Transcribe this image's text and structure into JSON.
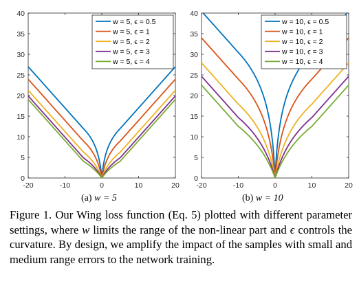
{
  "chart_data": [
    {
      "type": "line",
      "xlim": [
        -20,
        20
      ],
      "ylim": [
        0,
        40
      ],
      "x_ticks": [
        "-20",
        "-10",
        "0",
        "10",
        "20"
      ],
      "y_ticks": [
        "0",
        "5",
        "10",
        "15",
        "20",
        "25",
        "30",
        "35",
        "40"
      ],
      "grid": false,
      "legend_position": "top-right",
      "function": "wing loss: w*ln(1+|x|/epsilon) if |x|<w else |x| - w + w*ln(1+w/epsilon)",
      "w": 5,
      "x": [
        -20,
        -15,
        -10,
        -5,
        -2,
        -1,
        0,
        1,
        2,
        5,
        10,
        15,
        20
      ],
      "series": [
        {
          "name": "w = 5, ϵ = 0.5",
          "color": "#0072BD",
          "epsilon": 0.5,
          "values": [
            26.99,
            21.99,
            16.99,
            11.99,
            7.99,
            5.49,
            0,
            5.49,
            7.99,
            11.99,
            16.99,
            21.99,
            26.99
          ]
        },
        {
          "name": "w = 5, ϵ = 1",
          "color": "#D95319",
          "epsilon": 1,
          "values": [
            23.96,
            18.96,
            13.96,
            8.96,
            5.49,
            3.47,
            0,
            3.47,
            5.49,
            8.96,
            13.96,
            18.96,
            23.96
          ]
        },
        {
          "name": "w = 5, ϵ = 2",
          "color": "#EDB120",
          "epsilon": 2,
          "values": [
            21.26,
            16.26,
            11.26,
            6.26,
            3.47,
            2.03,
            0,
            2.03,
            3.47,
            6.26,
            11.26,
            16.26,
            21.26
          ]
        },
        {
          "name": "w = 5, ϵ = 3",
          "color": "#7E2F8E",
          "epsilon": 3,
          "values": [
            19.9,
            14.9,
            9.9,
            4.9,
            2.55,
            1.44,
            0,
            1.44,
            2.55,
            4.9,
            9.9,
            14.9,
            19.9
          ]
        },
        {
          "name": "w = 5, ϵ = 4",
          "color": "#77AC30",
          "epsilon": 4,
          "values": [
            19.06,
            14.06,
            9.06,
            4.06,
            2.03,
            1.12,
            0,
            1.12,
            2.03,
            4.06,
            9.06,
            14.06,
            19.06
          ]
        }
      ]
    },
    {
      "type": "line",
      "xlim": [
        -20,
        20
      ],
      "ylim": [
        0,
        40
      ],
      "x_ticks": [
        "-20",
        "-10",
        "0",
        "10",
        "20"
      ],
      "y_ticks": [
        "0",
        "5",
        "10",
        "15",
        "20",
        "25",
        "30",
        "35",
        "40"
      ],
      "grid": false,
      "legend_position": "top-right",
      "function": "wing loss: w*ln(1+|x|/epsilon) if |x|<w else |x| - w + w*ln(1+w/epsilon)",
      "w": 10,
      "x": [
        -20,
        -15,
        -10,
        -5,
        -2,
        -1,
        0,
        1,
        2,
        5,
        10,
        15,
        20
      ],
      "series": [
        {
          "name": "w = 10, ϵ = 0.5",
          "color": "#0072BD",
          "epsilon": 0.5,
          "values": [
            40.45,
            35.45,
            30.45,
            23.98,
            16.09,
            10.99,
            0,
            10.99,
            16.09,
            23.98,
            30.45,
            35.45,
            40.45
          ]
        },
        {
          "name": "w = 10, ϵ = 1",
          "color": "#D95319",
          "epsilon": 1,
          "values": [
            33.98,
            28.98,
            23.98,
            17.92,
            10.99,
            6.93,
            0,
            6.93,
            10.99,
            17.92,
            23.98,
            28.98,
            33.98
          ]
        },
        {
          "name": "w = 10, ϵ = 2",
          "color": "#EDB120",
          "epsilon": 2,
          "values": [
            27.92,
            22.92,
            17.92,
            12.53,
            6.93,
            4.05,
            0,
            4.05,
            6.93,
            12.53,
            17.92,
            22.92,
            27.92
          ]
        },
        {
          "name": "w = 10, ϵ = 3",
          "color": "#7E2F8E",
          "epsilon": 3,
          "values": [
            24.66,
            19.66,
            14.66,
            9.81,
            5.11,
            2.88,
            0,
            2.88,
            5.11,
            9.81,
            14.66,
            19.66,
            24.66
          ]
        },
        {
          "name": "w = 10, ϵ = 4",
          "color": "#77AC30",
          "epsilon": 4,
          "values": [
            22.53,
            17.53,
            12.53,
            8.11,
            4.05,
            2.23,
            0,
            2.23,
            4.05,
            8.11,
            12.53,
            17.53,
            22.53
          ]
        }
      ]
    }
  ],
  "subcaptions": [
    {
      "label": "(a) ",
      "math": "w = 5"
    },
    {
      "label": "(b) ",
      "math": "w = 10"
    }
  ],
  "caption": {
    "part1": "Figure 1. Our Wing loss function (Eq. 5) plotted with different parameter settings, where ",
    "var_w": "w",
    "part2": " limits the range of the non-linear part and ",
    "var_eps": "ϵ",
    "part3": " controls the curvature. By design, we amplify the impact of the samples with small and medium range errors to the network training."
  }
}
